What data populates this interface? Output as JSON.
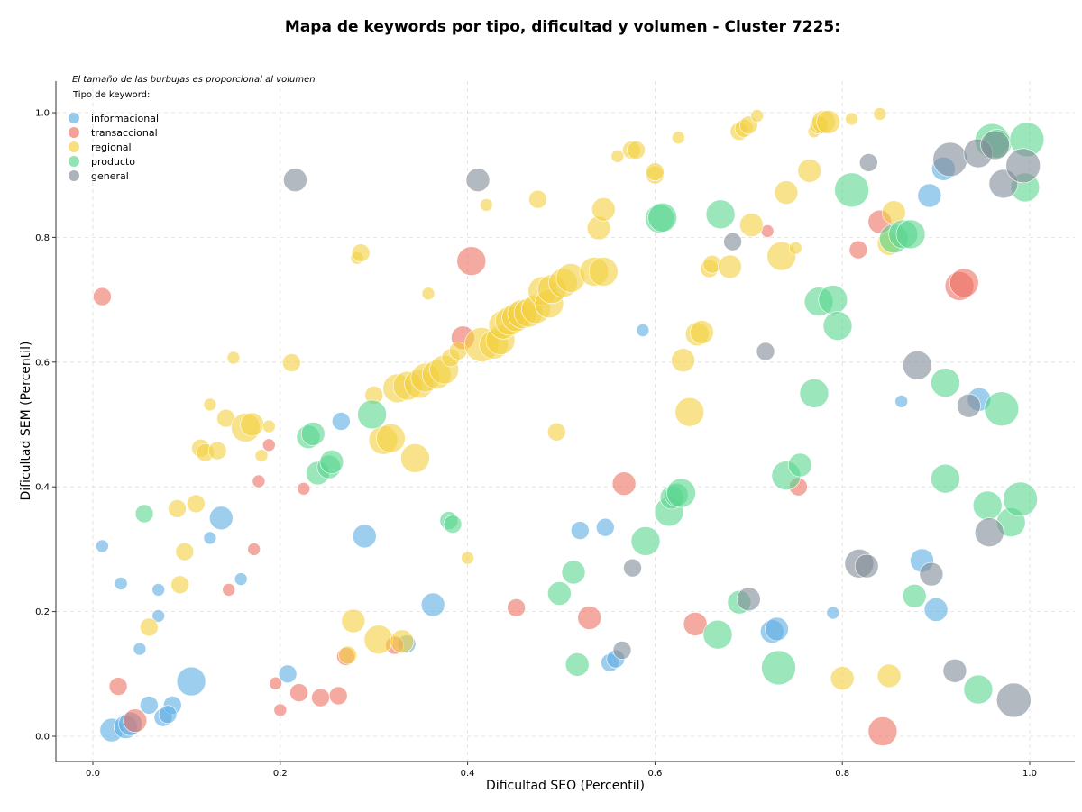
{
  "chart_data": {
    "type": "scatter",
    "title": "Mapa de keywords por tipo, dificultad y volumen - Cluster 7225:",
    "xlabel": "Dificultad SEO (Percentil)",
    "ylabel": "Dificultad SEM (Percentil)",
    "xlim": [
      -0.04,
      1.05
    ],
    "ylim": [
      -0.04,
      1.05
    ],
    "x_ticks": [
      "0.0",
      "0.2",
      "0.4",
      "0.6",
      "0.8",
      "1.0"
    ],
    "y_ticks": [
      "0.0",
      "0.2",
      "0.4",
      "0.6",
      "0.8",
      "1.0"
    ],
    "grid": true,
    "annotation": "El tamaño de las burbujas es proporcional al volumen",
    "legend_title": "Tipo de keyword:",
    "legend_position": "top-left",
    "series": [
      {
        "name": "informacional",
        "color": "#5dade2",
        "points": [
          [
            0.01,
            0.305,
            1
          ],
          [
            0.03,
            0.245,
            1
          ],
          [
            0.07,
            0.235,
            1
          ],
          [
            0.07,
            0.193,
            1
          ],
          [
            0.05,
            0.14,
            1
          ],
          [
            0.02,
            0.01,
            3
          ],
          [
            0.035,
            0.015,
            3
          ],
          [
            0.04,
            0.02,
            3
          ],
          [
            0.06,
            0.05,
            2
          ],
          [
            0.075,
            0.03,
            2
          ],
          [
            0.085,
            0.05,
            2
          ],
          [
            0.105,
            0.088,
            4
          ],
          [
            0.08,
            0.035,
            2
          ],
          [
            0.125,
            0.318,
            1
          ],
          [
            0.137,
            0.35,
            3
          ],
          [
            0.158,
            0.252,
            1
          ],
          [
            0.208,
            0.1,
            2
          ],
          [
            0.265,
            0.505,
            2
          ],
          [
            0.29,
            0.321,
            3
          ],
          [
            0.335,
            0.148,
            2
          ],
          [
            0.363,
            0.211,
            3
          ],
          [
            0.52,
            0.33,
            2
          ],
          [
            0.547,
            0.335,
            2
          ],
          [
            0.552,
            0.118,
            2
          ],
          [
            0.558,
            0.124,
            2
          ],
          [
            0.587,
            0.651,
            1
          ],
          [
            0.725,
            0.168,
            3
          ],
          [
            0.73,
            0.172,
            3
          ],
          [
            0.79,
            0.198,
            1
          ],
          [
            0.863,
            0.537,
            1
          ],
          [
            0.885,
            0.282,
            3
          ],
          [
            0.893,
            0.867,
            3
          ],
          [
            0.9,
            0.203,
            3
          ],
          [
            0.908,
            0.91,
            3
          ],
          [
            0.946,
            0.54,
            3
          ]
        ]
      },
      {
        "name": "transaccional",
        "color": "#ec7063",
        "points": [
          [
            0.01,
            0.705,
            2
          ],
          [
            0.027,
            0.08,
            2
          ],
          [
            0.045,
            0.025,
            3
          ],
          [
            0.145,
            0.235,
            1
          ],
          [
            0.172,
            0.3,
            1
          ],
          [
            0.177,
            0.409,
            1
          ],
          [
            0.188,
            0.467,
            1
          ],
          [
            0.195,
            0.085,
            1
          ],
          [
            0.2,
            0.042,
            1
          ],
          [
            0.22,
            0.07,
            2
          ],
          [
            0.225,
            0.397,
            1
          ],
          [
            0.243,
            0.062,
            2
          ],
          [
            0.262,
            0.065,
            2
          ],
          [
            0.27,
            0.128,
            2
          ],
          [
            0.322,
            0.146,
            2
          ],
          [
            0.395,
            0.639,
            3
          ],
          [
            0.404,
            0.762,
            4
          ],
          [
            0.452,
            0.206,
            2
          ],
          [
            0.53,
            0.19,
            3
          ],
          [
            0.567,
            0.405,
            3
          ],
          [
            0.643,
            0.18,
            3
          ],
          [
            0.72,
            0.81,
            1
          ],
          [
            0.753,
            0.4,
            2
          ],
          [
            0.817,
            0.78,
            2
          ],
          [
            0.84,
            0.825,
            3
          ],
          [
            0.843,
            0.008,
            4
          ],
          [
            0.925,
            0.722,
            4
          ],
          [
            0.93,
            0.727,
            4
          ]
        ]
      },
      {
        "name": "regional",
        "color": "#f4d03f",
        "points": [
          [
            0.06,
            0.175,
            2
          ],
          [
            0.09,
            0.365,
            2
          ],
          [
            0.093,
            0.243,
            2
          ],
          [
            0.098,
            0.296,
            2
          ],
          [
            0.11,
            0.373,
            2
          ],
          [
            0.115,
            0.462,
            2
          ],
          [
            0.12,
            0.455,
            2
          ],
          [
            0.125,
            0.532,
            1
          ],
          [
            0.133,
            0.458,
            2
          ],
          [
            0.142,
            0.51,
            2
          ],
          [
            0.15,
            0.607,
            1
          ],
          [
            0.163,
            0.495,
            4
          ],
          [
            0.17,
            0.5,
            3
          ],
          [
            0.18,
            0.45,
            1
          ],
          [
            0.188,
            0.497,
            1
          ],
          [
            0.212,
            0.599,
            2
          ],
          [
            0.272,
            0.13,
            2
          ],
          [
            0.278,
            0.185,
            3
          ],
          [
            0.282,
            0.767,
            1
          ],
          [
            0.286,
            0.775,
            2
          ],
          [
            0.3,
            0.547,
            2
          ],
          [
            0.305,
            0.155,
            4
          ],
          [
            0.31,
            0.475,
            4
          ],
          [
            0.318,
            0.478,
            4
          ],
          [
            0.325,
            0.558,
            4
          ],
          [
            0.33,
            0.152,
            3
          ],
          [
            0.336,
            0.562,
            4
          ],
          [
            0.344,
            0.446,
            4
          ],
          [
            0.348,
            0.565,
            4
          ],
          [
            0.355,
            0.575,
            4
          ],
          [
            0.358,
            0.71,
            1
          ],
          [
            0.367,
            0.58,
            4
          ],
          [
            0.375,
            0.588,
            4
          ],
          [
            0.382,
            0.607,
            2
          ],
          [
            0.39,
            0.618,
            2
          ],
          [
            0.4,
            0.286,
            1
          ],
          [
            0.415,
            0.628,
            5
          ],
          [
            0.42,
            0.852,
            1
          ],
          [
            0.428,
            0.628,
            4
          ],
          [
            0.435,
            0.635,
            4
          ],
          [
            0.438,
            0.66,
            4
          ],
          [
            0.445,
            0.666,
            4
          ],
          [
            0.452,
            0.672,
            4
          ],
          [
            0.458,
            0.677,
            4
          ],
          [
            0.465,
            0.679,
            4
          ],
          [
            0.473,
            0.685,
            4
          ],
          [
            0.475,
            0.861,
            2
          ],
          [
            0.48,
            0.714,
            4
          ],
          [
            0.487,
            0.694,
            4
          ],
          [
            0.49,
            0.717,
            4
          ],
          [
            0.495,
            0.488,
            2
          ],
          [
            0.502,
            0.727,
            4
          ],
          [
            0.51,
            0.735,
            4
          ],
          [
            0.535,
            0.745,
            4
          ],
          [
            0.545,
            0.745,
            4
          ],
          [
            0.54,
            0.815,
            3
          ],
          [
            0.545,
            0.845,
            3
          ],
          [
            0.56,
            0.93,
            1
          ],
          [
            0.575,
            0.94,
            2
          ],
          [
            0.58,
            0.94,
            2
          ],
          [
            0.6,
            0.9,
            2
          ],
          [
            0.6,
            0.905,
            2
          ],
          [
            0.625,
            0.96,
            1
          ],
          [
            0.63,
            0.603,
            3
          ],
          [
            0.637,
            0.52,
            4
          ],
          [
            0.645,
            0.645,
            3
          ],
          [
            0.65,
            0.648,
            3
          ],
          [
            0.658,
            0.75,
            2
          ],
          [
            0.661,
            0.757,
            2
          ],
          [
            0.68,
            0.753,
            3
          ],
          [
            0.69,
            0.97,
            2
          ],
          [
            0.695,
            0.975,
            2
          ],
          [
            0.7,
            0.98,
            2
          ],
          [
            0.703,
            0.82,
            3
          ],
          [
            0.709,
            0.995,
            1
          ],
          [
            0.735,
            0.77,
            4
          ],
          [
            0.74,
            0.872,
            3
          ],
          [
            0.75,
            0.783,
            1
          ],
          [
            0.765,
            0.907,
            3
          ],
          [
            0.77,
            0.97,
            1
          ],
          [
            0.775,
            0.98,
            2
          ],
          [
            0.78,
            0.985,
            3
          ],
          [
            0.785,
            0.985,
            3
          ],
          [
            0.8,
            0.093,
            3
          ],
          [
            0.81,
            0.99,
            1
          ],
          [
            0.84,
            0.998,
            1
          ],
          [
            0.85,
            0.79,
            3
          ],
          [
            0.855,
            0.84,
            3
          ],
          [
            0.85,
            0.097,
            3
          ]
        ]
      },
      {
        "name": "producto",
        "color": "#58d68d",
        "points": [
          [
            0.055,
            0.357,
            2
          ],
          [
            0.23,
            0.48,
            3
          ],
          [
            0.235,
            0.485,
            3
          ],
          [
            0.24,
            0.422,
            3
          ],
          [
            0.252,
            0.432,
            3
          ],
          [
            0.255,
            0.44,
            3
          ],
          [
            0.298,
            0.516,
            4
          ],
          [
            0.38,
            0.346,
            2
          ],
          [
            0.384,
            0.34,
            2
          ],
          [
            0.498,
            0.229,
            3
          ],
          [
            0.513,
            0.263,
            3
          ],
          [
            0.517,
            0.115,
            3
          ],
          [
            0.59,
            0.313,
            4
          ],
          [
            0.605,
            0.83,
            4
          ],
          [
            0.608,
            0.832,
            4
          ],
          [
            0.615,
            0.36,
            4
          ],
          [
            0.618,
            0.383,
            3
          ],
          [
            0.623,
            0.387,
            3
          ],
          [
            0.628,
            0.39,
            4
          ],
          [
            0.667,
            0.163,
            4
          ],
          [
            0.67,
            0.837,
            4
          ],
          [
            0.69,
            0.215,
            3
          ],
          [
            0.732,
            0.11,
            5
          ],
          [
            0.74,
            0.418,
            4
          ],
          [
            0.755,
            0.435,
            3
          ],
          [
            0.77,
            0.55,
            4
          ],
          [
            0.775,
            0.697,
            4
          ],
          [
            0.79,
            0.7,
            4
          ],
          [
            0.795,
            0.658,
            4
          ],
          [
            0.81,
            0.876,
            5
          ],
          [
            0.855,
            0.798,
            4
          ],
          [
            0.865,
            0.805,
            4
          ],
          [
            0.873,
            0.805,
            4
          ],
          [
            0.877,
            0.225,
            3
          ],
          [
            0.91,
            0.567,
            4
          ],
          [
            0.91,
            0.413,
            4
          ],
          [
            0.945,
            0.075,
            4
          ],
          [
            0.955,
            0.37,
            4
          ],
          [
            0.96,
            0.955,
            5
          ],
          [
            0.965,
            0.95,
            4
          ],
          [
            0.97,
            0.525,
            5
          ],
          [
            0.98,
            0.343,
            4
          ],
          [
            0.99,
            0.38,
            5
          ],
          [
            0.995,
            0.88,
            4
          ],
          [
            0.997,
            0.957,
            5
          ]
        ]
      },
      {
        "name": "general",
        "color": "#808b96",
        "points": [
          [
            0.216,
            0.892,
            3
          ],
          [
            0.411,
            0.892,
            3
          ],
          [
            0.565,
            0.138,
            2
          ],
          [
            0.576,
            0.27,
            2
          ],
          [
            0.683,
            0.793,
            2
          ],
          [
            0.7,
            0.22,
            3
          ],
          [
            0.718,
            0.617,
            2
          ],
          [
            0.818,
            0.277,
            4
          ],
          [
            0.828,
            0.92,
            2
          ],
          [
            0.826,
            0.273,
            3
          ],
          [
            0.88,
            0.595,
            4
          ],
          [
            0.895,
            0.26,
            3
          ],
          [
            0.92,
            0.105,
            3
          ],
          [
            0.915,
            0.925,
            5
          ],
          [
            0.935,
            0.53,
            3
          ],
          [
            0.945,
            0.935,
            4
          ],
          [
            0.957,
            0.327,
            4
          ],
          [
            0.963,
            0.948,
            4
          ],
          [
            0.972,
            0.886,
            4
          ],
          [
            0.983,
            0.058,
            5
          ],
          [
            0.993,
            0.915,
            5
          ]
        ]
      }
    ]
  }
}
